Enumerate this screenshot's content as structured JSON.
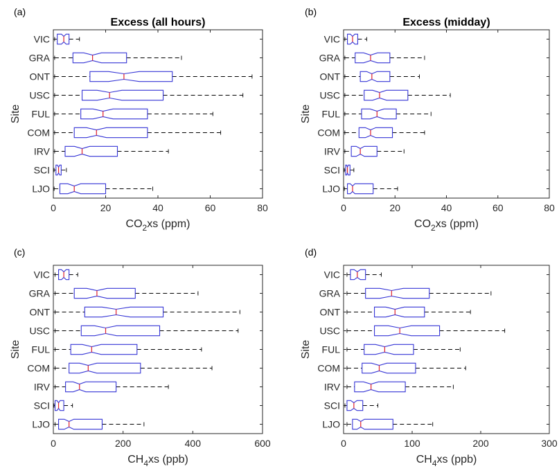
{
  "chart_data": [
    {
      "type": "box",
      "panel": "(a)",
      "title": "Excess (all hours)",
      "ylabel": "Site",
      "xlabel": {
        "main": "CO",
        "sub": "2",
        "rest": "xs (ppm)"
      },
      "xlim": [
        0,
        80
      ],
      "xticks": [
        0,
        20,
        40,
        60,
        80
      ],
      "categories": [
        "VIC",
        "GRA",
        "ONT",
        "USC",
        "FUL",
        "COM",
        "IRV",
        "SCI",
        "LJO"
      ],
      "boxes": [
        {
          "site": "VIC",
          "wlo": 0.5,
          "q1": 1.5,
          "med": 4,
          "q3": 6,
          "whi": 10
        },
        {
          "site": "GRA",
          "wlo": 0.5,
          "q1": 7.5,
          "med": 15,
          "q3": 28,
          "whi": 49
        },
        {
          "site": "ONT",
          "wlo": 0.5,
          "q1": 14,
          "med": 27,
          "q3": 45.5,
          "whi": 76
        },
        {
          "site": "USC",
          "wlo": 0.5,
          "q1": 11,
          "med": 21.5,
          "q3": 42,
          "whi": 72.5
        },
        {
          "site": "FUL",
          "wlo": 0.5,
          "q1": 10.5,
          "med": 19,
          "q3": 36,
          "whi": 61
        },
        {
          "site": "COM",
          "wlo": 0.5,
          "q1": 8,
          "med": 16.5,
          "q3": 36,
          "whi": 64
        },
        {
          "site": "IRV",
          "wlo": 0.5,
          "q1": 4.5,
          "med": 11,
          "q3": 24.5,
          "whi": 44
        },
        {
          "site": "SCI",
          "wlo": 0.3,
          "q1": 1,
          "med": 2,
          "q3": 3,
          "whi": 5
        },
        {
          "site": "LJO",
          "wlo": 0.3,
          "q1": 2.5,
          "med": 8,
          "q3": 20,
          "whi": 38
        }
      ]
    },
    {
      "type": "box",
      "panel": "(b)",
      "title": "Excess (midday)",
      "ylabel": "Site",
      "xlabel": {
        "main": "CO",
        "sub": "2",
        "rest": "xs (ppm)"
      },
      "xlim": [
        0,
        80
      ],
      "xticks": [
        0,
        20,
        40,
        60,
        80
      ],
      "categories": [
        "VIC",
        "GRA",
        "ONT",
        "USC",
        "FUL",
        "COM",
        "IRV",
        "SCI",
        "LJO"
      ],
      "boxes": [
        {
          "site": "VIC",
          "wlo": 0.5,
          "q1": 1.5,
          "med": 3.5,
          "q3": 5.5,
          "whi": 9
        },
        {
          "site": "GRA",
          "wlo": 0.5,
          "q1": 4.5,
          "med": 10.5,
          "q3": 18,
          "whi": 31.5
        },
        {
          "site": "ONT",
          "wlo": 0.5,
          "q1": 6.5,
          "med": 11,
          "q3": 18,
          "whi": 29.5
        },
        {
          "site": "USC",
          "wlo": 0.5,
          "q1": 8,
          "med": 14,
          "q3": 25,
          "whi": 41.5
        },
        {
          "site": "FUL",
          "wlo": 0.5,
          "q1": 7,
          "med": 13,
          "q3": 20.5,
          "whi": 34
        },
        {
          "site": "COM",
          "wlo": 0.5,
          "q1": 6,
          "med": 10.5,
          "q3": 19,
          "whi": 31.5
        },
        {
          "site": "IRV",
          "wlo": 0.5,
          "q1": 3,
          "med": 6.5,
          "q3": 13,
          "whi": 23.5
        },
        {
          "site": "SCI",
          "wlo": 0.3,
          "q1": 0.8,
          "med": 1.5,
          "q3": 2.5,
          "whi": 4
        },
        {
          "site": "LJO",
          "wlo": 0.3,
          "q1": 1.5,
          "med": 3.5,
          "q3": 11.5,
          "whi": 21
        }
      ]
    },
    {
      "type": "box",
      "panel": "(c)",
      "title": "",
      "ylabel": "Site",
      "xlabel": {
        "main": "CH",
        "sub": "4",
        "rest": "xs (ppb)"
      },
      "xlim": [
        0,
        600
      ],
      "xticks": [
        0,
        200,
        400,
        600
      ],
      "categories": [
        "VIC",
        "GRA",
        "ONT",
        "USC",
        "FUL",
        "COM",
        "IRV",
        "SCI",
        "LJO"
      ],
      "boxes": [
        {
          "site": "VIC",
          "wlo": 5,
          "q1": 15,
          "med": 30,
          "q3": 45,
          "whi": 70
        },
        {
          "site": "GRA",
          "wlo": 5,
          "q1": 60,
          "med": 125,
          "q3": 235,
          "whi": 415
        },
        {
          "site": "ONT",
          "wlo": 5,
          "q1": 90,
          "med": 180,
          "q3": 315,
          "whi": 535
        },
        {
          "site": "USC",
          "wlo": 5,
          "q1": 80,
          "med": 150,
          "q3": 305,
          "whi": 530
        },
        {
          "site": "FUL",
          "wlo": 5,
          "q1": 50,
          "med": 110,
          "q3": 240,
          "whi": 425
        },
        {
          "site": "COM",
          "wlo": 5,
          "q1": 45,
          "med": 100,
          "q3": 250,
          "whi": 455
        },
        {
          "site": "IRV",
          "wlo": 5,
          "q1": 35,
          "med": 75,
          "q3": 180,
          "whi": 330
        },
        {
          "site": "SCI",
          "wlo": 2,
          "q1": 5,
          "med": 15,
          "q3": 30,
          "whi": 55
        },
        {
          "site": "LJO",
          "wlo": 5,
          "q1": 15,
          "med": 45,
          "q3": 140,
          "whi": 260
        }
      ]
    },
    {
      "type": "box",
      "panel": "(d)",
      "title": "",
      "ylabel": "Site",
      "xlabel": {
        "main": "CH",
        "sub": "4",
        "rest": "xs (ppb)"
      },
      "xlim": [
        0,
        300
      ],
      "xticks": [
        0,
        100,
        200,
        300
      ],
      "categories": [
        "VIC",
        "GRA",
        "ONT",
        "USC",
        "FUL",
        "COM",
        "IRV",
        "SCI",
        "LJO"
      ],
      "boxes": [
        {
          "site": "VIC",
          "wlo": 5,
          "q1": 10,
          "med": 20,
          "q3": 32,
          "whi": 55
        },
        {
          "site": "GRA",
          "wlo": 5,
          "q1": 32,
          "med": 70,
          "q3": 125,
          "whi": 215
        },
        {
          "site": "ONT",
          "wlo": 5,
          "q1": 45,
          "med": 75,
          "q3": 118,
          "whi": 185
        },
        {
          "site": "USC",
          "wlo": 5,
          "q1": 45,
          "med": 82,
          "q3": 140,
          "whi": 235
        },
        {
          "site": "FUL",
          "wlo": 5,
          "q1": 30,
          "med": 60,
          "q3": 102,
          "whi": 170
        },
        {
          "site": "COM",
          "wlo": 5,
          "q1": 27,
          "med": 52,
          "q3": 105,
          "whi": 178
        },
        {
          "site": "IRV",
          "wlo": 5,
          "q1": 16,
          "med": 40,
          "q3": 90,
          "whi": 160
        },
        {
          "site": "SCI",
          "wlo": 2,
          "q1": 5,
          "med": 15,
          "q3": 28,
          "whi": 50
        },
        {
          "site": "LJO",
          "wlo": 5,
          "q1": 13,
          "med": 25,
          "q3": 72,
          "whi": 130
        }
      ]
    }
  ]
}
